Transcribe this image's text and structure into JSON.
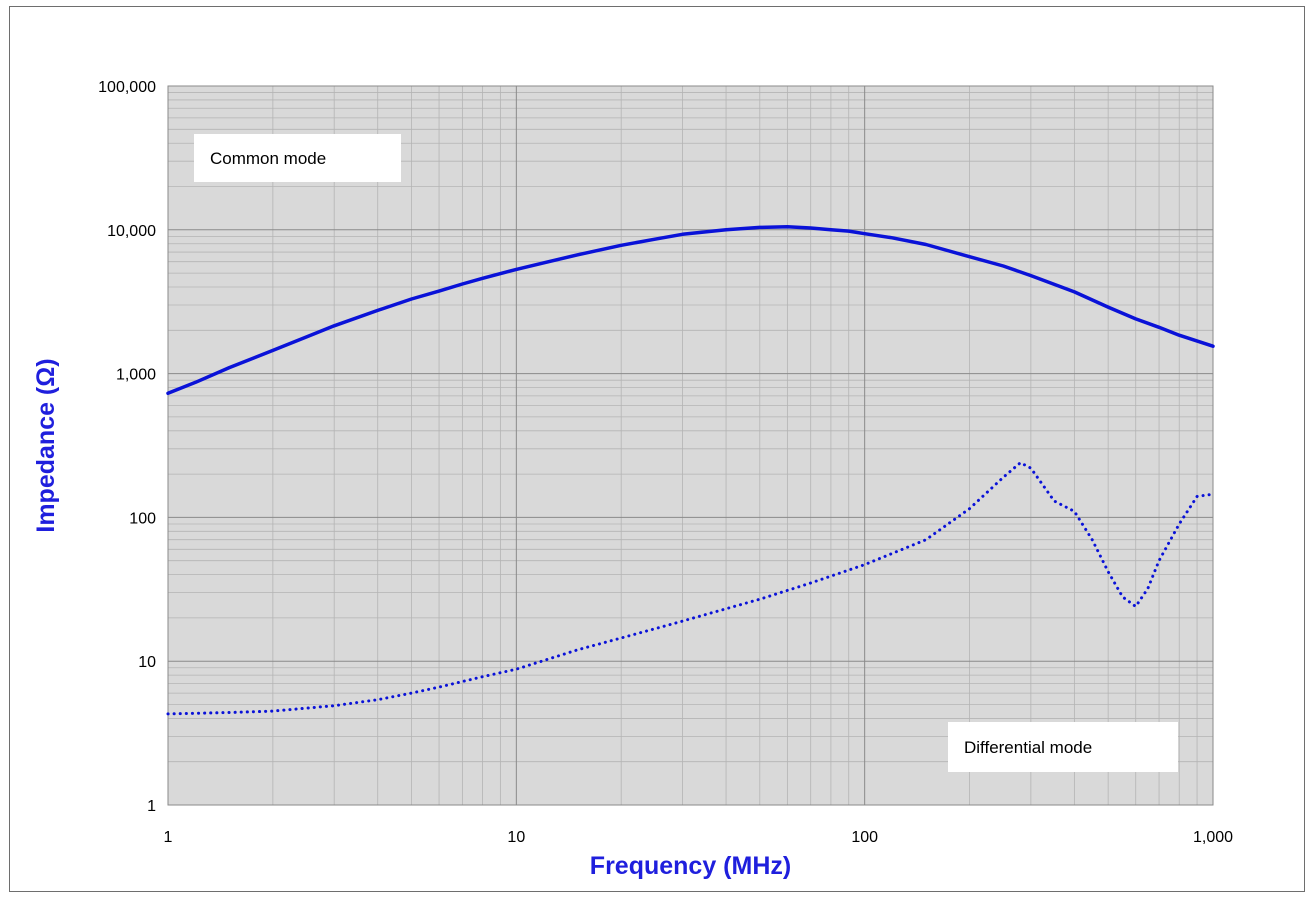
{
  "chart_data": {
    "type": "line",
    "xlabel": "Frequency (MHz)",
    "ylabel": "Impedance (Ω)",
    "x_scale": "log",
    "y_scale": "log",
    "xlim": [
      1,
      1000
    ],
    "ylim": [
      1,
      100000
    ],
    "x_ticks": [
      1,
      10,
      100,
      1000
    ],
    "x_tick_labels": [
      "1",
      "10",
      "100",
      "1,000"
    ],
    "y_ticks": [
      1,
      10,
      100,
      1000,
      10000,
      100000
    ],
    "y_tick_labels": [
      "1",
      "10",
      "100",
      "1,000",
      "10,000",
      "100,000"
    ],
    "grid": true,
    "plot_background": "#d9d9d9",
    "grid_color": "#9a9a9a",
    "axis_title_color": "#1f1fdd",
    "series": [
      {
        "name": "Common mode",
        "color": "#0a12d8",
        "line_style": "solid",
        "x": [
          1,
          1.2,
          1.5,
          2,
          2.5,
          3,
          4,
          5,
          6,
          7,
          8,
          10,
          12,
          15,
          20,
          25,
          30,
          40,
          50,
          60,
          70,
          80,
          90,
          100,
          120,
          150,
          200,
          250,
          300,
          400,
          500,
          600,
          700,
          800,
          1000
        ],
        "y": [
          730,
          870,
          1100,
          1450,
          1800,
          2150,
          2750,
          3300,
          3750,
          4200,
          4600,
          5300,
          5900,
          6700,
          7800,
          8600,
          9300,
          10000,
          10400,
          10500,
          10300,
          10000,
          9800,
          9400,
          8800,
          7900,
          6500,
          5600,
          4800,
          3700,
          2900,
          2400,
          2100,
          1850,
          1550
        ]
      },
      {
        "name": "Differential mode",
        "color": "#0a12d8",
        "line_style": "dotted",
        "x": [
          1,
          1.5,
          2,
          3,
          4,
          5,
          6,
          8,
          10,
          15,
          20,
          30,
          50,
          70,
          100,
          150,
          200,
          250,
          280,
          300,
          350,
          400,
          450,
          500,
          550,
          600,
          650,
          700,
          800,
          900,
          1000
        ],
        "y": [
          4.3,
          4.4,
          4.5,
          4.9,
          5.4,
          6.0,
          6.6,
          7.8,
          8.8,
          12,
          14.5,
          19,
          27,
          35,
          47,
          70,
          115,
          190,
          240,
          220,
          130,
          110,
          70,
          42,
          28,
          24,
          32,
          50,
          90,
          140,
          145
        ]
      }
    ],
    "annotations": [
      {
        "id": "common",
        "text": "Common mode"
      },
      {
        "id": "diff",
        "text": "Differential mode"
      }
    ]
  }
}
